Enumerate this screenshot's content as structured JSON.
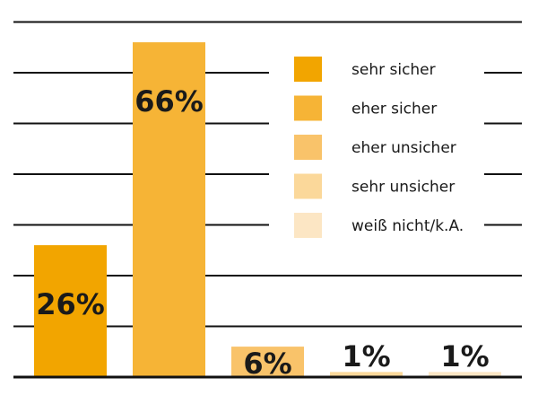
{
  "chart_data": {
    "type": "bar",
    "categories": [
      "sehr sicher",
      "eher sicher",
      "eher unsicher",
      "sehr unsicher",
      "weiß nicht/k.A."
    ],
    "values": [
      26,
      66,
      6,
      1,
      1
    ],
    "value_labels": [
      "26%",
      "66%",
      "6%",
      "1%",
      "1%"
    ],
    "colors": [
      "#f2a500",
      "#f6b436",
      "#f9c36a",
      "#fbd89a",
      "#fce6c4"
    ],
    "ylim": [
      0,
      72
    ],
    "grid": true,
    "legend": {
      "position": "top-right",
      "entries": [
        "sehr sicher",
        "eher sicher",
        "eher unsicher",
        "sehr unsicher",
        "weiß nicht/k.A."
      ]
    },
    "title": "",
    "xlabel": "",
    "ylabel": ""
  }
}
